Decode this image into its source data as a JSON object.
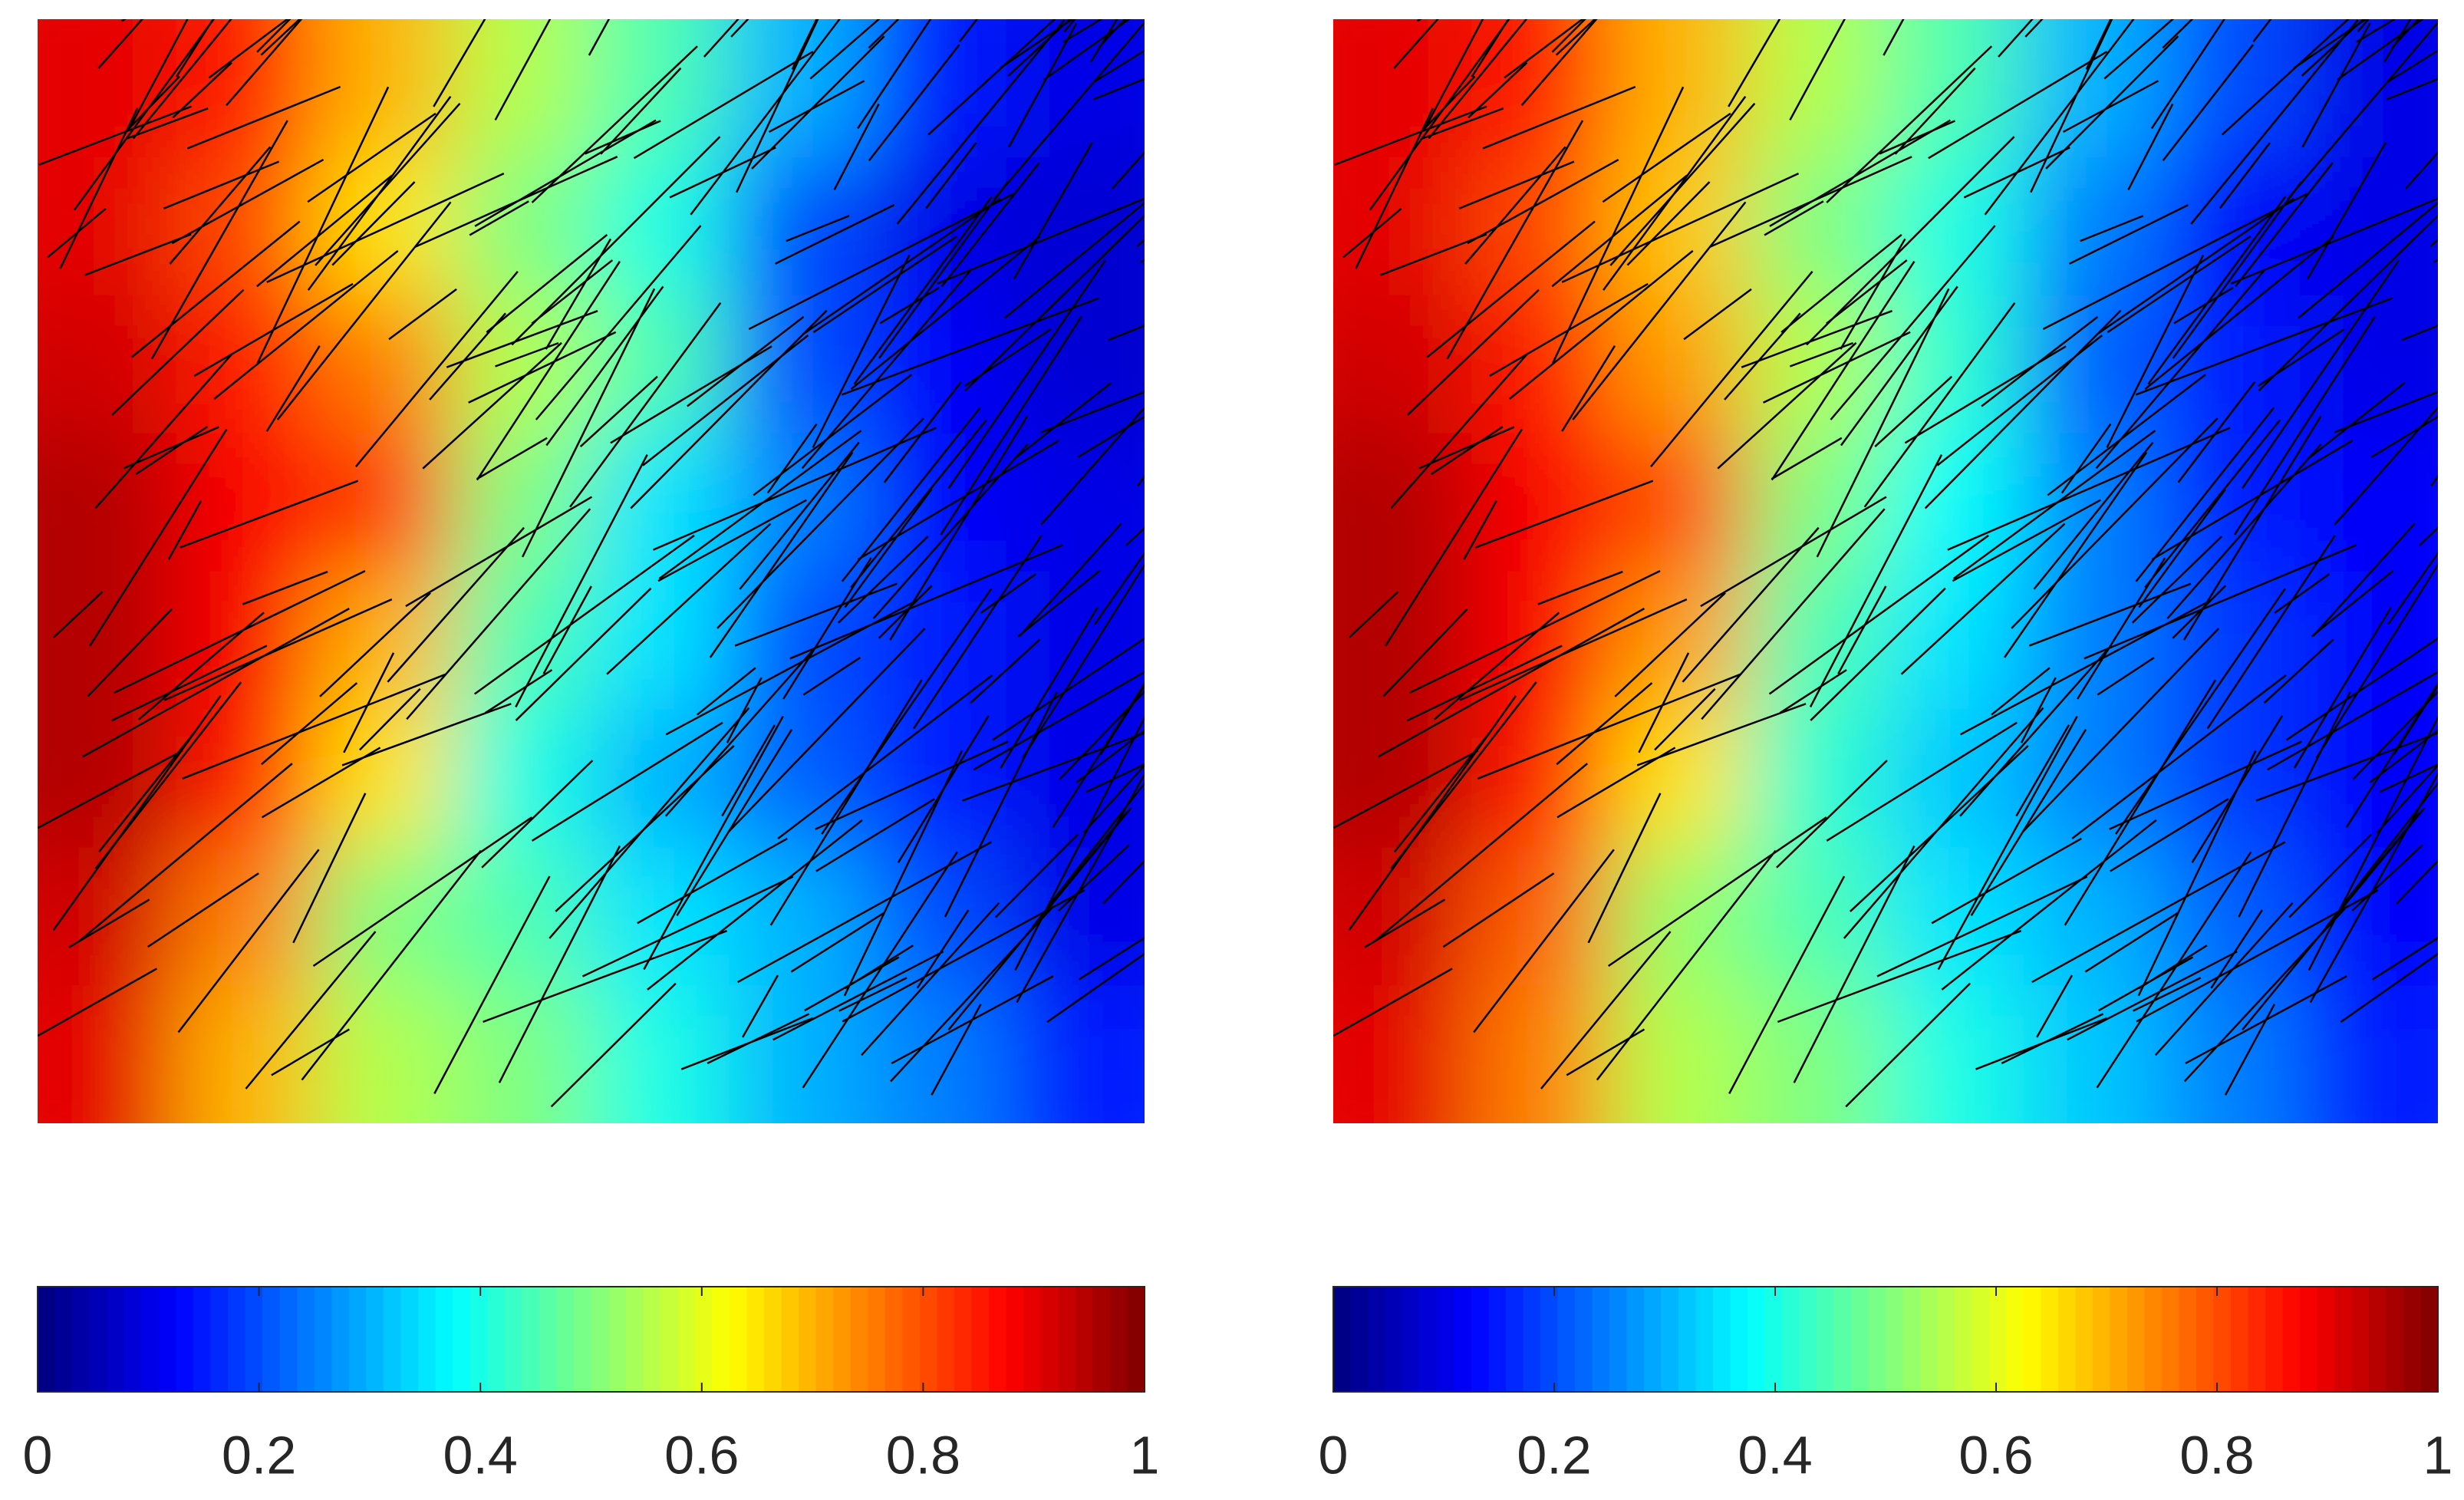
{
  "chart_data": [
    {
      "type": "heatmap",
      "colormap": "jet",
      "z": [
        [
          0.9,
          0.85,
          0.7,
          0.55,
          0.45,
          0.3,
          0.15,
          0.1
        ],
        [
          0.9,
          0.8,
          0.65,
          0.5,
          0.4,
          0.2,
          0.1,
          0.08
        ],
        [
          0.92,
          0.85,
          0.75,
          0.55,
          0.45,
          0.2,
          0.12,
          0.08
        ],
        [
          0.95,
          0.88,
          0.82,
          0.5,
          0.35,
          0.25,
          0.12,
          0.1
        ],
        [
          0.95,
          0.88,
          0.7,
          0.45,
          0.35,
          0.2,
          0.15,
          0.1
        ],
        [
          0.95,
          0.85,
          0.65,
          0.4,
          0.3,
          0.22,
          0.15,
          0.1
        ],
        [
          0.92,
          0.75,
          0.5,
          0.45,
          0.35,
          0.3,
          0.2,
          0.1
        ],
        [
          0.9,
          0.7,
          0.55,
          0.5,
          0.4,
          0.3,
          0.25,
          0.15
        ]
      ],
      "clim": [
        0,
        1
      ],
      "cticks": [
        0,
        0.2,
        0.4,
        0.6,
        0.8,
        1
      ]
    },
    {
      "type": "heatmap",
      "colormap": "jet",
      "z": [
        [
          0.9,
          0.85,
          0.7,
          0.55,
          0.45,
          0.3,
          0.2,
          0.1
        ],
        [
          0.9,
          0.8,
          0.68,
          0.5,
          0.4,
          0.25,
          0.12,
          0.1
        ],
        [
          0.92,
          0.85,
          0.72,
          0.55,
          0.42,
          0.22,
          0.15,
          0.1
        ],
        [
          0.95,
          0.88,
          0.8,
          0.5,
          0.38,
          0.25,
          0.15,
          0.12
        ],
        [
          0.95,
          0.88,
          0.72,
          0.45,
          0.35,
          0.25,
          0.18,
          0.12
        ],
        [
          0.95,
          0.85,
          0.65,
          0.42,
          0.32,
          0.25,
          0.18,
          0.12
        ],
        [
          0.92,
          0.78,
          0.52,
          0.45,
          0.35,
          0.3,
          0.22,
          0.12
        ],
        [
          0.9,
          0.75,
          0.55,
          0.5,
          0.4,
          0.32,
          0.25,
          0.15
        ]
      ],
      "clim": [
        0,
        1
      ],
      "cticks": [
        0,
        0.2,
        0.4,
        0.6,
        0.8,
        1
      ]
    }
  ]
}
